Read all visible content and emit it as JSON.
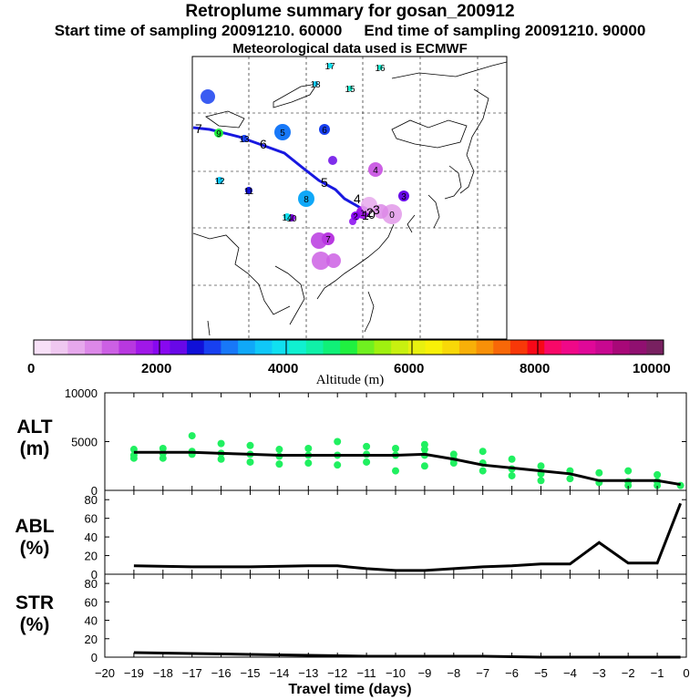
{
  "header": {
    "title": "Retroplume summary for gosan_200912",
    "start_time": "Start time of sampling 20091210. 60000",
    "end_time": "End time of sampling 20091210. 90000",
    "met_data": "Meteorological data used is ECMWF"
  },
  "colorbar": {
    "label": "Altitude  (m)",
    "tick_labels": [
      "0",
      "2000",
      "4000",
      "6000",
      "8000",
      "10000"
    ],
    "colors": [
      "#f7e0f7",
      "#efc8f0",
      "#e6a8ec",
      "#dc88e8",
      "#cc60e4",
      "#b838e0",
      "#a018e8",
      "#8808f0",
      "#6808e8",
      "#1010d8",
      "#1840f0",
      "#1878f8",
      "#10a8f8",
      "#10c8f8",
      "#10e0f0",
      "#10f0d0",
      "#10f0a8",
      "#10f078",
      "#20f040",
      "#70f020",
      "#a0f010",
      "#c8f010",
      "#e8f010",
      "#f8f008",
      "#f8d808",
      "#f8b008",
      "#f89008",
      "#f86808",
      "#f83808",
      "#f80818",
      "#f80868",
      "#f00888",
      "#e00898",
      "#c80890",
      "#a80878",
      "#901070",
      "#782060"
    ]
  },
  "map": {
    "trajectory_labels": [
      "7",
      "6",
      "5",
      "4",
      "3",
      "2",
      "1",
      "0"
    ],
    "clusters": [
      {
        "id": "0",
        "color": "#e6a8ec"
      },
      {
        "id": "1",
        "color": "#a018e8"
      },
      {
        "id": "2",
        "color": "#8808f0"
      },
      {
        "id": "3",
        "color": "#6808e8"
      },
      {
        "id": "4",
        "color": "#cc60e4"
      },
      {
        "id": "5",
        "color": "#1878f8"
      },
      {
        "id": "6",
        "color": "#1840f0"
      },
      {
        "id": "7",
        "color": "#b838e0"
      },
      {
        "id": "8",
        "color": "#10a8f8"
      },
      {
        "id": "9",
        "color": "#20f040"
      },
      {
        "id": "10",
        "color": "#8808f0"
      },
      {
        "id": "11",
        "color": "#1010d8"
      },
      {
        "id": "12",
        "color": "#10c8f8"
      },
      {
        "id": "13",
        "color": "#1840f0"
      },
      {
        "id": "14",
        "color": "#10e0f0"
      },
      {
        "id": "15",
        "color": "#10f0d0"
      },
      {
        "id": "16",
        "color": "#10f0d0"
      },
      {
        "id": "17",
        "color": "#10e0f0"
      },
      {
        "id": "18",
        "color": "#10c8f8"
      }
    ]
  },
  "panels": {
    "alt_label": [
      "ALT",
      "(m)"
    ],
    "abl_label": [
      "ABL",
      "(%)"
    ],
    "str_label": [
      "STR",
      "(%)"
    ]
  },
  "chart_data": [
    {
      "type": "line",
      "title": "ALT (m)",
      "xlabel": "Travel time (days)",
      "ylabel": "ALT (m)",
      "xlim": [
        -20,
        0
      ],
      "ylim": [
        0,
        10000
      ],
      "y_ticks": [
        0,
        5000,
        10000
      ],
      "x_ticks": [
        -20,
        -19,
        -18,
        -17,
        -16,
        -15,
        -14,
        -13,
        -12,
        -11,
        -10,
        -9,
        -8,
        -7,
        -6,
        -5,
        -4,
        -3,
        -2,
        -1,
        0
      ],
      "x": [
        -19.0,
        -18.0,
        -17.0,
        -16.0,
        -15.0,
        -14.0,
        -13.0,
        -12.0,
        -11.0,
        -10.0,
        -9.0,
        -8.0,
        -7.0,
        -6.0,
        -5.0,
        -4.0,
        -3.0,
        -2.0,
        -1.0,
        -0.2
      ],
      "mean": [
        3900,
        3900,
        3900,
        3800,
        3700,
        3600,
        3600,
        3600,
        3600,
        3600,
        3700,
        3200,
        2600,
        2300,
        2000,
        1700,
        1000,
        1000,
        1000,
        600
      ],
      "cluster_points": [
        {
          "x": -19.0,
          "y": 4200
        },
        {
          "x": -19.0,
          "y": 3600
        },
        {
          "x": -19.0,
          "y": 3300
        },
        {
          "x": -18.0,
          "y": 4300
        },
        {
          "x": -18.0,
          "y": 3800
        },
        {
          "x": -18.0,
          "y": 3300
        },
        {
          "x": -17.0,
          "y": 4000
        },
        {
          "x": -17.0,
          "y": 3700
        },
        {
          "x": -17.0,
          "y": 5600
        },
        {
          "x": -16.0,
          "y": 4800
        },
        {
          "x": -16.0,
          "y": 3800
        },
        {
          "x": -16.0,
          "y": 3200
        },
        {
          "x": -15.0,
          "y": 4600
        },
        {
          "x": -15.0,
          "y": 3700
        },
        {
          "x": -15.0,
          "y": 2900
        },
        {
          "x": -14.0,
          "y": 4200
        },
        {
          "x": -14.0,
          "y": 3500
        },
        {
          "x": -14.0,
          "y": 2700
        },
        {
          "x": -13.0,
          "y": 4300
        },
        {
          "x": -13.0,
          "y": 3600
        },
        {
          "x": -13.0,
          "y": 2800
        },
        {
          "x": -12.0,
          "y": 5000
        },
        {
          "x": -12.0,
          "y": 3600
        },
        {
          "x": -12.0,
          "y": 2600
        },
        {
          "x": -11.0,
          "y": 4500
        },
        {
          "x": -11.0,
          "y": 3700
        },
        {
          "x": -11.0,
          "y": 2900
        },
        {
          "x": -10.0,
          "y": 4300
        },
        {
          "x": -10.0,
          "y": 3600
        },
        {
          "x": -10.0,
          "y": 2000
        },
        {
          "x": -9.0,
          "y": 4700
        },
        {
          "x": -9.0,
          "y": 4200
        },
        {
          "x": -9.0,
          "y": 3600
        },
        {
          "x": -9.0,
          "y": 2500
        },
        {
          "x": -8.0,
          "y": 3700
        },
        {
          "x": -8.0,
          "y": 3200
        },
        {
          "x": -8.0,
          "y": 2800
        },
        {
          "x": -7.0,
          "y": 4000
        },
        {
          "x": -7.0,
          "y": 2800
        },
        {
          "x": -7.0,
          "y": 2000
        },
        {
          "x": -6.0,
          "y": 3200
        },
        {
          "x": -6.0,
          "y": 2200
        },
        {
          "x": -6.0,
          "y": 1500
        },
        {
          "x": -5.0,
          "y": 2500
        },
        {
          "x": -5.0,
          "y": 1700
        },
        {
          "x": -5.0,
          "y": 1000
        },
        {
          "x": -4.0,
          "y": 2000
        },
        {
          "x": -4.0,
          "y": 1200
        },
        {
          "x": -3.0,
          "y": 1800
        },
        {
          "x": -3.0,
          "y": 800
        },
        {
          "x": -2.0,
          "y": 2000
        },
        {
          "x": -2.0,
          "y": 900
        },
        {
          "x": -2.0,
          "y": 500
        },
        {
          "x": -1.0,
          "y": 1600
        },
        {
          "x": -1.0,
          "y": 900
        },
        {
          "x": -1.0,
          "y": 500
        },
        {
          "x": -0.2,
          "y": 500
        }
      ]
    },
    {
      "type": "line",
      "title": "ABL (%)",
      "ylabel": "ABL (%)",
      "xlim": [
        -20,
        0
      ],
      "ylim": [
        0,
        90
      ],
      "y_ticks": [
        0,
        20,
        40,
        60,
        80
      ],
      "x": [
        -19.0,
        -17.0,
        -15.0,
        -13.0,
        -12.0,
        -11.0,
        -10.0,
        -9.0,
        -8.0,
        -7.0,
        -6.0,
        -5.0,
        -4.0,
        -3.0,
        -2.0,
        -1.0,
        -0.2
      ],
      "values": [
        9,
        8,
        8,
        9,
        9,
        6,
        4,
        4,
        6,
        8,
        9,
        11,
        11,
        34,
        12,
        12,
        76
      ]
    },
    {
      "type": "line",
      "title": "STR (%)",
      "ylabel": "STR (%)",
      "xlim": [
        -20,
        0
      ],
      "ylim": [
        0,
        90
      ],
      "y_ticks": [
        0,
        20,
        40,
        60,
        80
      ],
      "x": [
        -19.0,
        -17.0,
        -15.0,
        -13.0,
        -11.0,
        -9.0,
        -7.0,
        -5.0,
        -3.0,
        -1.0,
        -0.2
      ],
      "values": [
        5,
        4,
        3,
        2,
        1,
        1,
        1,
        0,
        0,
        0,
        0
      ]
    }
  ],
  "x_axis": {
    "label": "Travel time (days)"
  }
}
